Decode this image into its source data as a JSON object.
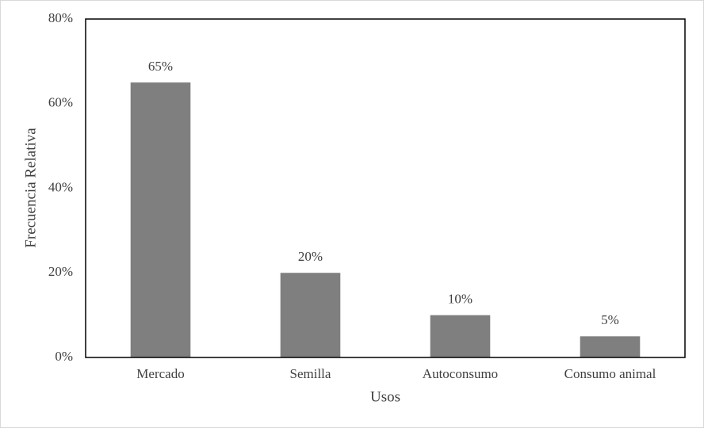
{
  "chart_data": {
    "type": "bar",
    "categories": [
      "Mercado",
      "Semilla",
      "Autoconsumo",
      "Consumo animal"
    ],
    "values": [
      65,
      20,
      10,
      5
    ],
    "value_labels": [
      "65%",
      "20%",
      "10%",
      "5%"
    ],
    "color": "#7f7f7f",
    "xlabel": "Usos",
    "ylabel": "Frecuencia Relativa",
    "ylim": [
      0,
      80
    ],
    "yticks": [
      {
        "value": 0,
        "label": "0%"
      },
      {
        "value": 20,
        "label": "20%"
      },
      {
        "value": 40,
        "label": "40%"
      },
      {
        "value": 60,
        "label": "60%"
      },
      {
        "value": 80,
        "label": "80%"
      }
    ],
    "grid": false
  }
}
